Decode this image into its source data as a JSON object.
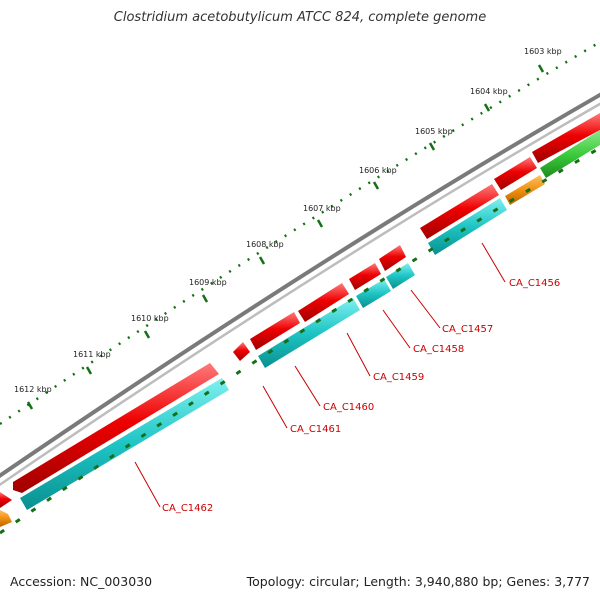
{
  "title": "Clostridium acetobutylicum ATCC 824, complete genome",
  "footer": {
    "accession": "Accession: NC_003030",
    "summary": "Topology: circular; Length: 3,940,880 bp; Genes: 3,777"
  },
  "ruler_labels": [
    "1603 kbp",
    "1604 kbp",
    "1605 kbp",
    "1606 kbp",
    "1607 kbp",
    "1608 kbp",
    "1609 kbp",
    "1610 kbp",
    "1611 kbp",
    "1612 kbp"
  ],
  "gene_labels": [
    "CA_C1456",
    "CA_C1457",
    "CA_C1458",
    "CA_C1459",
    "CA_C1460",
    "CA_C1461",
    "CA_C1462"
  ],
  "colors": {
    "backbone": "#808080",
    "cds": "#e80000",
    "gene_bar": "#20c8c8",
    "green_feature": "#3ccc3c",
    "orange_feature": "#f09010",
    "tick": "#157015",
    "label_text": "#cc0000",
    "callout_line": "#cc0000"
  }
}
